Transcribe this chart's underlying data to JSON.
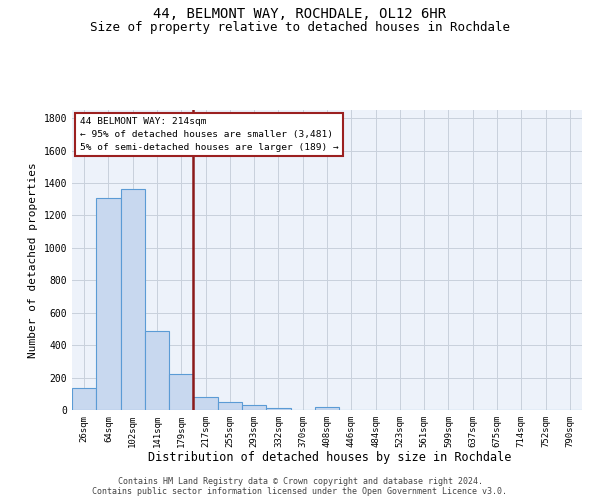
{
  "title1": "44, BELMONT WAY, ROCHDALE, OL12 6HR",
  "title2": "Size of property relative to detached houses in Rochdale",
  "xlabel": "Distribution of detached houses by size in Rochdale",
  "ylabel": "Number of detached properties",
  "categories": [
    "26sqm",
    "64sqm",
    "102sqm",
    "141sqm",
    "179sqm",
    "217sqm",
    "255sqm",
    "293sqm",
    "332sqm",
    "370sqm",
    "408sqm",
    "446sqm",
    "484sqm",
    "523sqm",
    "561sqm",
    "599sqm",
    "637sqm",
    "675sqm",
    "714sqm",
    "752sqm",
    "790sqm"
  ],
  "values": [
    135,
    1310,
    1365,
    490,
    225,
    80,
    48,
    28,
    15,
    0,
    17,
    0,
    0,
    0,
    0,
    0,
    0,
    0,
    0,
    0,
    0
  ],
  "bar_color": "#c8d8ef",
  "bar_edge_color": "#5b9bd5",
  "vline_color": "#8b1a1a",
  "vline_index": 4.5,
  "box_text_line1": "44 BELMONT WAY: 214sqm",
  "box_text_line2": "← 95% of detached houses are smaller (3,481)",
  "box_text_line3": "5% of semi-detached houses are larger (189) →",
  "box_color": "#9b2020",
  "ylim": [
    0,
    1850
  ],
  "yticks": [
    0,
    200,
    400,
    600,
    800,
    1000,
    1200,
    1400,
    1600,
    1800
  ],
  "footer1": "Contains HM Land Registry data © Crown copyright and database right 2024.",
  "footer2": "Contains public sector information licensed under the Open Government Licence v3.0.",
  "bg_color": "#edf2fa",
  "grid_color": "#c8d0dc",
  "title_fontsize": 10,
  "subtitle_fontsize": 9,
  "tick_fontsize": 6.5,
  "ylabel_fontsize": 8,
  "xlabel_fontsize": 8.5
}
